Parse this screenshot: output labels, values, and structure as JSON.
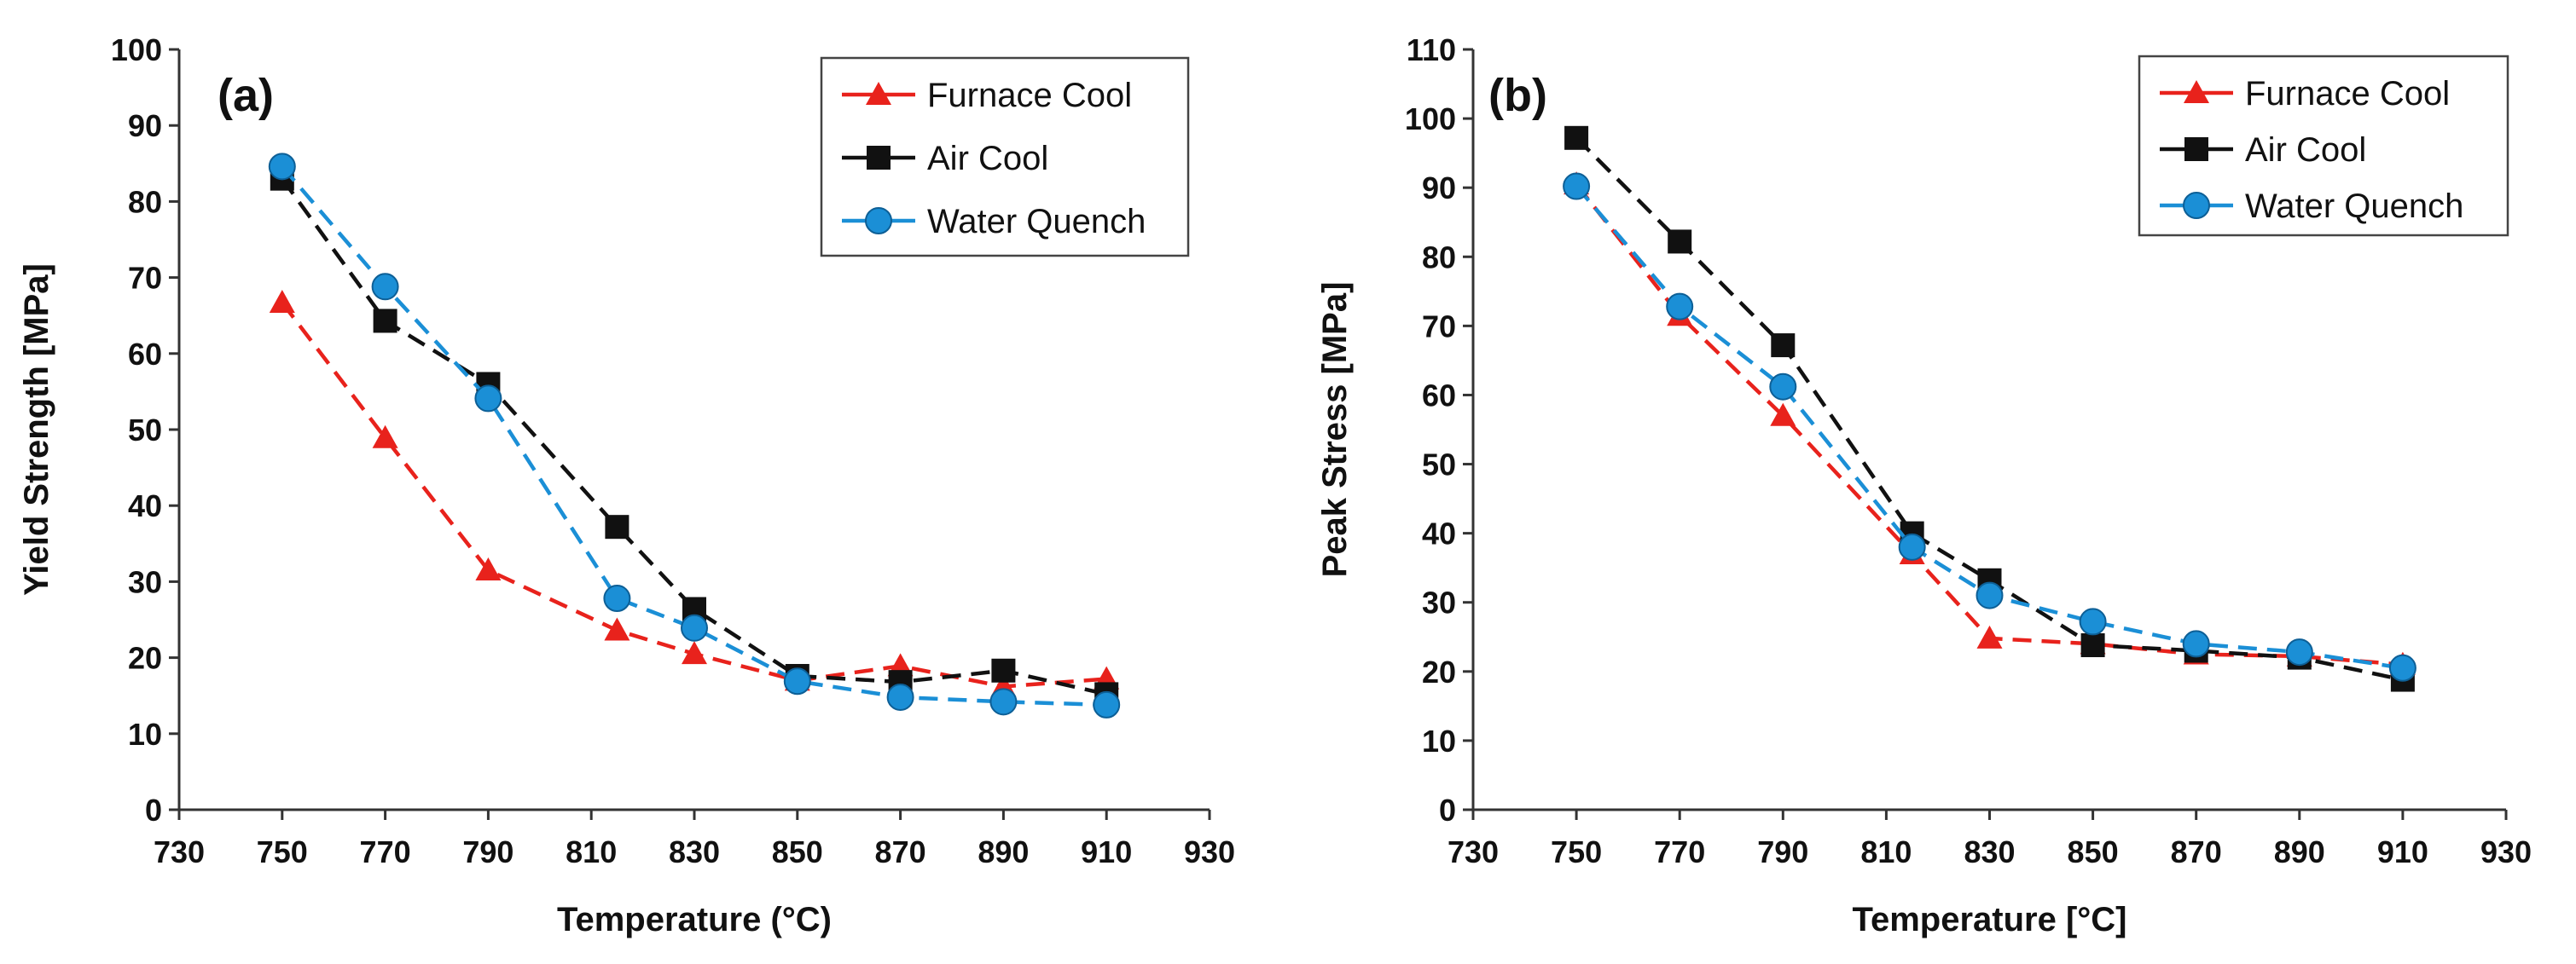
{
  "chart_data": [
    {
      "type": "line",
      "panel_label": "(a)",
      "xlabel": "Temperature (°C)",
      "ylabel": "Yield Strength [MPa]",
      "xlim": [
        730,
        930
      ],
      "ylim": [
        0,
        100
      ],
      "xticks": [
        730,
        750,
        770,
        790,
        810,
        830,
        850,
        870,
        890,
        910,
        930
      ],
      "yticks": [
        0,
        10,
        20,
        30,
        40,
        50,
        60,
        70,
        80,
        90,
        100
      ],
      "legend_position": "top-right",
      "x": [
        750,
        770,
        790,
        815,
        830,
        850,
        870,
        890,
        910
      ],
      "series": [
        {
          "name": "Furnace Cool",
          "marker": "triangle",
          "color": "#e8221c",
          "values": [
            66.7,
            48.9,
            31.5,
            23.6,
            20.5,
            17.0,
            18.9,
            16.2,
            17.2
          ]
        },
        {
          "name": "Air Cool",
          "marker": "square",
          "color": "#111111",
          "values": [
            83.0,
            64.3,
            56.0,
            37.2,
            26.4,
            17.6,
            16.8,
            18.3,
            15.2
          ]
        },
        {
          "name": "Water Quench",
          "marker": "circle",
          "color": "#1b8fd6",
          "values": [
            84.6,
            68.8,
            54.1,
            27.8,
            23.9,
            16.9,
            14.8,
            14.2,
            13.8
          ]
        }
      ]
    },
    {
      "type": "line",
      "panel_label": "(b)",
      "xlabel": "Temperature [°C]",
      "ylabel": "Peak Stress [MPa]",
      "xlim": [
        730,
        930
      ],
      "ylim": [
        0,
        110
      ],
      "xticks": [
        730,
        750,
        770,
        790,
        810,
        830,
        850,
        870,
        890,
        910,
        930
      ],
      "yticks": [
        0,
        10,
        20,
        30,
        40,
        50,
        60,
        70,
        80,
        90,
        100,
        110
      ],
      "legend_position": "top-right",
      "x": [
        750,
        770,
        790,
        815,
        830,
        850,
        870,
        890,
        910
      ],
      "series": [
        {
          "name": "Furnace Cool",
          "marker": "triangle",
          "color": "#e8221c",
          "values": [
            90.5,
            71.5,
            57.0,
            37.0,
            24.8,
            24.0,
            22.5,
            22.2,
            21.0
          ]
        },
        {
          "name": "Air Cool",
          "marker": "square",
          "color": "#111111",
          "values": [
            97.2,
            82.2,
            67.2,
            40.0,
            33.2,
            23.8,
            23.0,
            22.0,
            18.8
          ]
        },
        {
          "name": "Water Quench",
          "marker": "circle",
          "color": "#1b8fd6",
          "values": [
            90.2,
            72.8,
            61.2,
            38.0,
            31.0,
            27.2,
            24.0,
            22.8,
            20.5
          ]
        }
      ]
    }
  ]
}
